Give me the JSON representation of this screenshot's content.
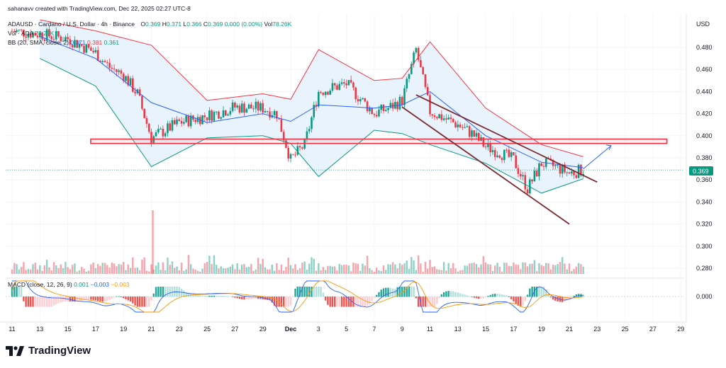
{
  "header": {
    "credit": "sahanavv created with TradingView.com, Dec 22, 2025 02:27 UTC-8",
    "symbol": "ADAUSD · Cardano / U.S. Dollar · 4h · Binance",
    "o_label": "O",
    "o": "0.369",
    "h_label": "H",
    "h": "0.371",
    "l_label": "L",
    "l": "0.366",
    "c_label": "C",
    "c": "0.369",
    "change": "0.000 (0.00%)",
    "vol_label": "Vol",
    "vol": "78.26K",
    "vol_line_label": "Vol · ADA",
    "vol_line_value": "78.26K",
    "bb_label": "BB (20, SMA, close, 2)",
    "bb_basis": "0.371",
    "bb_upper": "0.381",
    "bb_lower": "0.361",
    "macd_label": "MACD (close, 12, 26, 9)",
    "macd_hist": "0.001",
    "macd_line": "−0.003",
    "macd_signal": "−0.003"
  },
  "price_axis": {
    "currency": "USD",
    "ticks": [
      "0.480",
      "0.460",
      "0.440",
      "0.420",
      "0.400",
      "0.380",
      "0.360",
      "0.340",
      "0.320",
      "0.300",
      "0.280"
    ],
    "current_price": "0.369"
  },
  "macd_axis": {
    "ticks": [
      "0.000"
    ]
  },
  "time_axis": {
    "labels": [
      "11",
      "13",
      "15",
      "17",
      "19",
      "21",
      "23",
      "25",
      "27",
      "29",
      "Dec",
      "3",
      "5",
      "7",
      "9",
      "11",
      "13",
      "15",
      "17",
      "19",
      "21",
      "23",
      "25",
      "27",
      "29"
    ]
  },
  "brand": {
    "name": "TradingView"
  },
  "colors": {
    "up": "#089981",
    "down": "#f23645",
    "bb_upper": "#f23645",
    "bb_lower": "#089981",
    "bb_basis": "#2962ff",
    "bb_fill": "#e3f0fb",
    "macd_line": "#2962ff",
    "signal_line": "#ff9800",
    "annotation": "#7d2a30"
  },
  "chart_data": {
    "type": "candlestick",
    "symbol": "ADAUSD",
    "interval": "4h",
    "x_range": [
      "2025-11-10",
      "2025-12-30"
    ],
    "y_range": [
      0.272,
      0.5
    ],
    "series": [
      {
        "name": "Price close",
        "x": [
          "2025-11-11",
          "2025-11-13",
          "2025-11-15",
          "2025-11-17",
          "2025-11-18",
          "2025-11-19",
          "2025-11-20",
          "2025-11-21",
          "2025-11-22",
          "2025-11-23",
          "2025-11-25",
          "2025-11-27",
          "2025-11-29",
          "2025-11-30",
          "2025-12-01",
          "2025-12-02",
          "2025-12-03",
          "2025-12-05",
          "2025-12-07",
          "2025-12-08",
          "2025-12-09",
          "2025-12-10",
          "2025-12-11",
          "2025-12-13",
          "2025-12-14",
          "2025-12-15",
          "2025-12-16",
          "2025-12-17",
          "2025-12-18",
          "2025-12-19",
          "2025-12-20",
          "2025-12-21",
          "2025-12-22"
        ],
        "values": [
          0.495,
          0.492,
          0.488,
          0.475,
          0.462,
          0.455,
          0.438,
          0.398,
          0.405,
          0.412,
          0.418,
          0.426,
          0.425,
          0.42,
          0.378,
          0.392,
          0.44,
          0.447,
          0.42,
          0.425,
          0.432,
          0.478,
          0.422,
          0.41,
          0.402,
          0.39,
          0.385,
          0.378,
          0.352,
          0.375,
          0.372,
          0.366,
          0.369
        ]
      },
      {
        "name": "BB upper",
        "x": [
          "2025-11-13",
          "2025-11-17",
          "2025-11-21",
          "2025-11-25",
          "2025-11-29",
          "2025-12-01",
          "2025-12-03",
          "2025-12-07",
          "2025-12-09",
          "2025-12-11",
          "2025-12-15",
          "2025-12-19",
          "2025-12-22"
        ],
        "values": [
          0.505,
          0.495,
          0.482,
          0.432,
          0.438,
          0.433,
          0.478,
          0.45,
          0.452,
          0.485,
          0.425,
          0.392,
          0.381
        ]
      },
      {
        "name": "BB basis",
        "x": [
          "2025-11-13",
          "2025-11-17",
          "2025-11-21",
          "2025-11-25",
          "2025-11-29",
          "2025-12-01",
          "2025-12-03",
          "2025-12-07",
          "2025-12-09",
          "2025-12-11",
          "2025-12-15",
          "2025-12-19",
          "2025-12-22"
        ],
        "values": [
          0.49,
          0.47,
          0.43,
          0.412,
          0.42,
          0.413,
          0.428,
          0.425,
          0.428,
          0.44,
          0.4,
          0.376,
          0.371
        ]
      },
      {
        "name": "BB lower",
        "x": [
          "2025-11-13",
          "2025-11-17",
          "2025-11-21",
          "2025-11-25",
          "2025-11-29",
          "2025-12-01",
          "2025-12-03",
          "2025-12-07",
          "2025-12-09",
          "2025-12-11",
          "2025-12-15",
          "2025-12-19",
          "2025-12-22"
        ],
        "values": [
          0.47,
          0.445,
          0.372,
          0.398,
          0.4,
          0.393,
          0.363,
          0.405,
          0.402,
          0.392,
          0.375,
          0.348,
          0.361
        ]
      }
    ],
    "annotations": [
      {
        "type": "support_zone",
        "y": [
          0.393,
          0.397
        ],
        "x": [
          "2025-11-17",
          "2025-12-28"
        ]
      },
      {
        "type": "trendline",
        "points": [
          [
            "2025-12-10",
            0.437
          ],
          [
            "2025-12-23",
            0.358
          ]
        ]
      },
      {
        "type": "trendline",
        "points": [
          [
            "2025-12-09",
            0.426
          ],
          [
            "2025-12-21",
            0.32
          ]
        ]
      },
      {
        "type": "arrow",
        "points": [
          [
            "2025-12-22",
            0.37
          ],
          [
            "2025-12-24",
            0.391
          ]
        ]
      }
    ],
    "volume": {
      "peak_x": "2025-11-21"
    },
    "macd": {
      "histogram": 0.001,
      "macd": -0.003,
      "signal": -0.003
    }
  }
}
